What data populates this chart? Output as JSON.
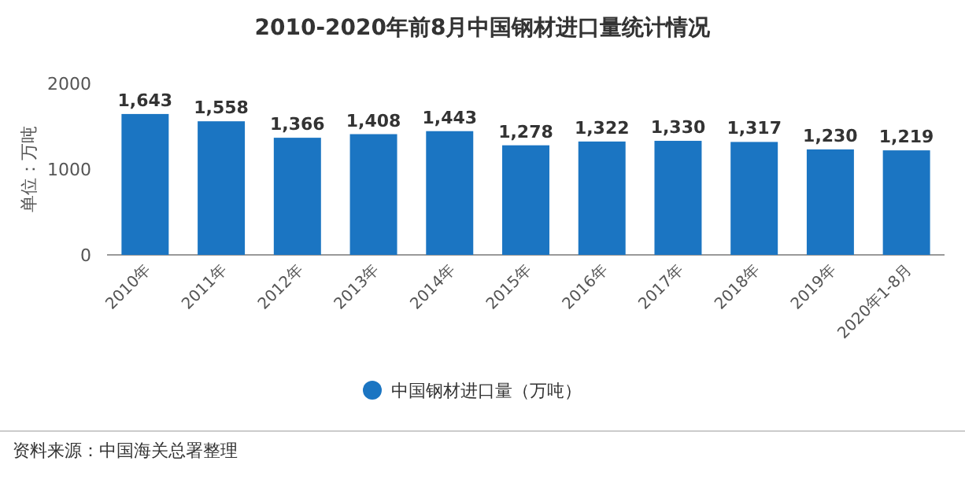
{
  "chart_data": {
    "type": "bar",
    "title": "2010-2020年前8月中国钢材进口量统计情况",
    "ylabel": "单位：万吨",
    "categories": [
      "2010年",
      "2011年",
      "2012年",
      "2013年",
      "2014年",
      "2015年",
      "2016年",
      "2017年",
      "2018年",
      "2019年",
      "2020年1-8月"
    ],
    "series": [
      {
        "name": "中国钢材进口量（万吨）",
        "color": "#1b75c2",
        "values": [
          1643,
          1558,
          1366,
          1408,
          1443,
          1278,
          1322,
          1330,
          1317,
          1230,
          1219
        ],
        "value_labels": [
          "1,643",
          "1,558",
          "1,366",
          "1,408",
          "1,443",
          "1,278",
          "1,322",
          "1,330",
          "1,317",
          "1,230",
          "1,219"
        ]
      }
    ],
    "ylim": [
      0,
      2000
    ],
    "yticks": [
      0,
      1000,
      2000
    ],
    "legend": "bottom",
    "annotations": [
      "资料来源：中国海关总署整理"
    ]
  }
}
